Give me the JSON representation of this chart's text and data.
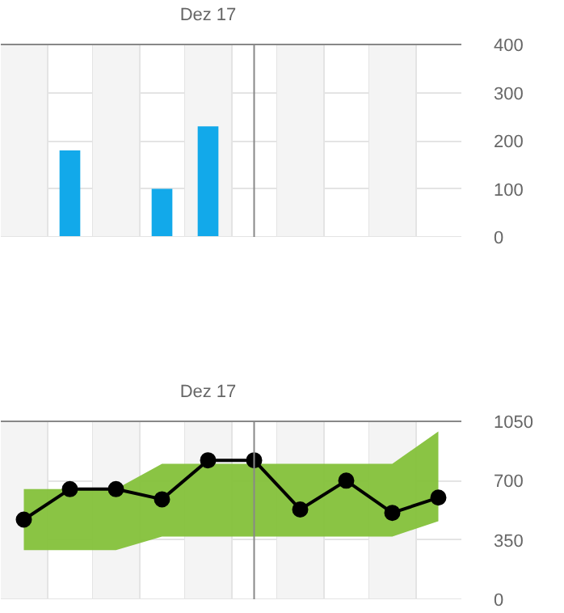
{
  "chart_data": [
    {
      "type": "bar",
      "categories": [
        null,
        null,
        null,
        null,
        "Dez 17",
        null,
        null,
        null,
        null,
        null
      ],
      "values": [
        null,
        180,
        null,
        100,
        230,
        null,
        null,
        null,
        null,
        null
      ],
      "color": "#12a9ea",
      "ylim": [
        0,
        400
      ],
      "yticks": [
        0,
        100,
        200,
        300,
        400
      ],
      "grid": true
    },
    {
      "type": "line",
      "categories": [
        null,
        null,
        null,
        null,
        "Dez 17",
        null,
        null,
        null,
        null,
        null
      ],
      "ylim": [
        0,
        1050
      ],
      "yticks": [
        0,
        350,
        700,
        1050
      ],
      "series": [
        {
          "color": "#000000",
          "values": [
            470,
            650,
            650,
            590,
            820,
            820,
            530,
            700,
            510,
            600
          ],
          "lower": [
            290,
            290,
            290,
            370,
            370,
            370,
            370,
            370,
            370,
            460
          ],
          "upper": [
            650,
            650,
            650,
            800,
            800,
            800,
            800,
            800,
            800,
            990
          ]
        }
      ],
      "marker": "circle",
      "line_style": "solid",
      "grid": true
    }
  ]
}
